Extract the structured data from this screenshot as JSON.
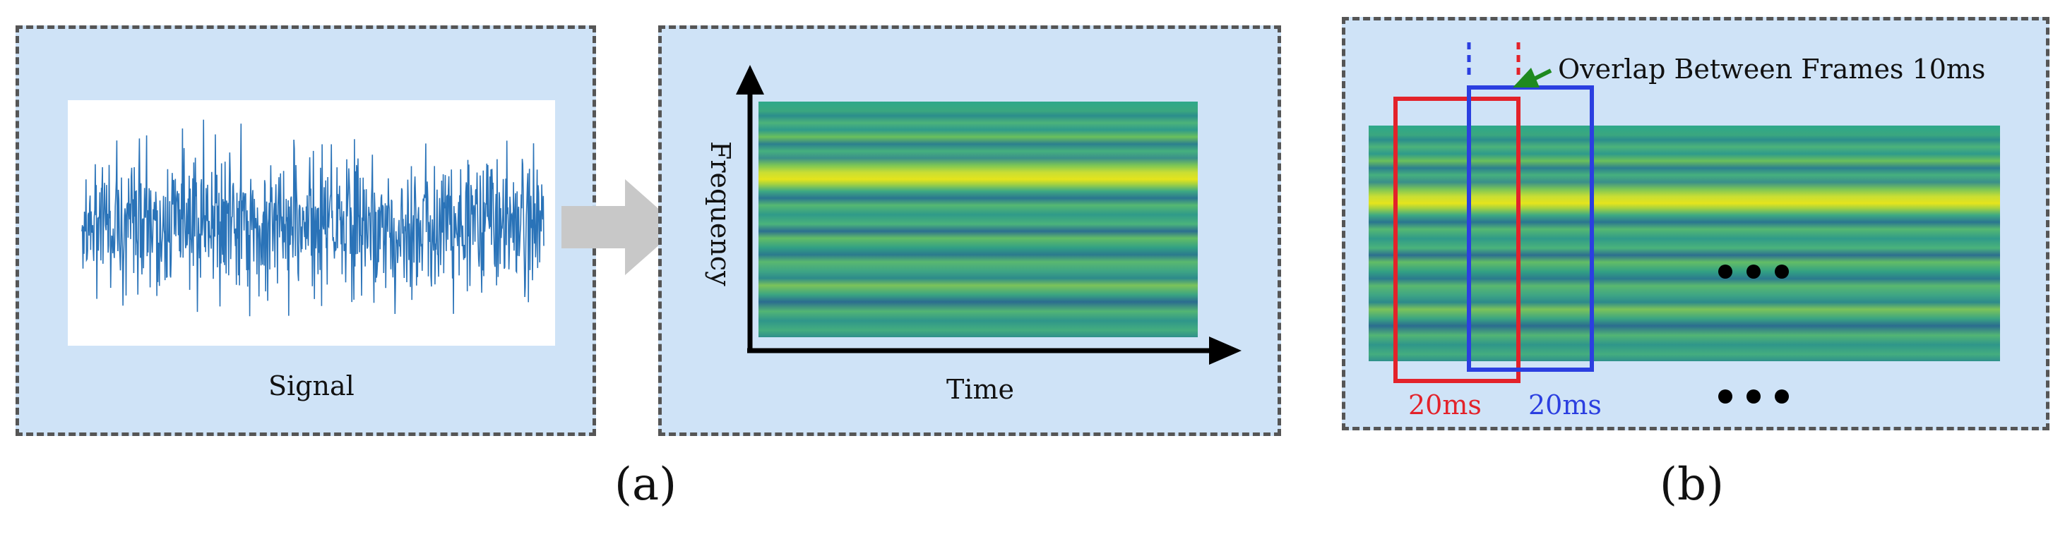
{
  "panel_signal": {
    "caption": "Signal"
  },
  "panel_spectrogram": {
    "y_axis": "Frequency",
    "x_axis": "Time"
  },
  "panel_frames": {
    "overlap_text": "Overlap Between Frames 10ms",
    "red_frame_label": "20ms",
    "blue_frame_label": "20ms",
    "red_color": "#e3222a",
    "blue_color": "#2b3fe0",
    "arrow_color": "#1f8a1f"
  },
  "sub_labels": {
    "a": "(a)",
    "b": "(b)"
  },
  "colors": {
    "panel_bg": "#cfe3f7",
    "signal_color": "#2a73b8",
    "arrow_grey": "#c8c8c8"
  }
}
